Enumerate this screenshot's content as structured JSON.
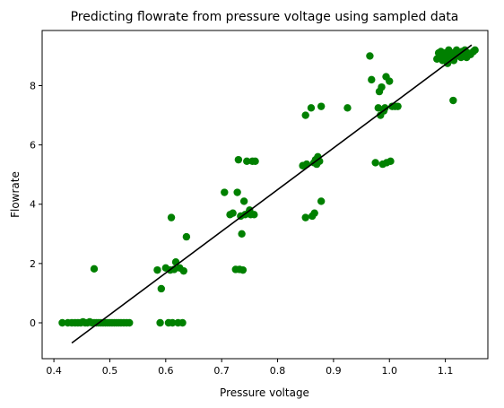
{
  "chart_data": {
    "type": "scatter",
    "title": "Predicting flowrate from pressure voltage using sampled data",
    "xlabel": "Pressure voltage",
    "ylabel": "Flowrate",
    "xlim": [
      0.379,
      1.176
    ],
    "ylim": [
      -1.21,
      9.86
    ],
    "xticks": [
      0.4,
      0.5,
      0.6,
      0.7,
      0.8,
      0.9,
      1.0,
      1.1
    ],
    "xtick_labels": [
      "0.4",
      "0.5",
      "0.6",
      "0.7",
      "0.8",
      "0.9",
      "1.0",
      "1.1"
    ],
    "yticks": [
      0,
      2,
      4,
      6,
      8
    ],
    "ytick_labels": [
      "0",
      "2",
      "4",
      "6",
      "8"
    ],
    "grid": false,
    "legend": "none",
    "point_color": "#008000",
    "line_color": "#000000",
    "points": [
      [
        0.415,
        0.0
      ],
      [
        0.425,
        0.0
      ],
      [
        0.432,
        0.0
      ],
      [
        0.438,
        0.0
      ],
      [
        0.443,
        0.0
      ],
      [
        0.448,
        0.0
      ],
      [
        0.452,
        0.03
      ],
      [
        0.456,
        0.0
      ],
      [
        0.46,
        0.0
      ],
      [
        0.464,
        0.03
      ],
      [
        0.468,
        0.0
      ],
      [
        0.472,
        0.0
      ],
      [
        0.476,
        0.0
      ],
      [
        0.48,
        0.0
      ],
      [
        0.484,
        0.0
      ],
      [
        0.488,
        0.0
      ],
      [
        0.492,
        0.0
      ],
      [
        0.496,
        0.0
      ],
      [
        0.5,
        0.0
      ],
      [
        0.504,
        0.0
      ],
      [
        0.508,
        0.0
      ],
      [
        0.512,
        0.0
      ],
      [
        0.516,
        0.0
      ],
      [
        0.52,
        0.0
      ],
      [
        0.525,
        0.0
      ],
      [
        0.53,
        0.0
      ],
      [
        0.535,
        0.0
      ],
      [
        0.472,
        1.82
      ],
      [
        0.585,
        1.78
      ],
      [
        0.59,
        0.0
      ],
      [
        0.592,
        1.15
      ],
      [
        0.6,
        1.85
      ],
      [
        0.605,
        0.0
      ],
      [
        0.608,
        1.78
      ],
      [
        0.61,
        3.55
      ],
      [
        0.612,
        0.0
      ],
      [
        0.615,
        1.8
      ],
      [
        0.618,
        2.05
      ],
      [
        0.622,
        0.0
      ],
      [
        0.625,
        1.85
      ],
      [
        0.63,
        0.0
      ],
      [
        0.632,
        1.75
      ],
      [
        0.637,
        2.9
      ],
      [
        0.705,
        4.4
      ],
      [
        0.715,
        3.65
      ],
      [
        0.72,
        3.7
      ],
      [
        0.725,
        1.8
      ],
      [
        0.728,
        4.4
      ],
      [
        0.73,
        5.5
      ],
      [
        0.732,
        1.8
      ],
      [
        0.734,
        3.6
      ],
      [
        0.736,
        3.0
      ],
      [
        0.738,
        1.78
      ],
      [
        0.74,
        4.1
      ],
      [
        0.742,
        3.65
      ],
      [
        0.745,
        5.45
      ],
      [
        0.748,
        3.7
      ],
      [
        0.75,
        3.8
      ],
      [
        0.752,
        3.65
      ],
      [
        0.755,
        5.45
      ],
      [
        0.758,
        3.65
      ],
      [
        0.76,
        5.45
      ],
      [
        0.845,
        5.3
      ],
      [
        0.85,
        3.55
      ],
      [
        0.85,
        7.0
      ],
      [
        0.852,
        5.35
      ],
      [
        0.86,
        7.25
      ],
      [
        0.862,
        3.6
      ],
      [
        0.865,
        5.4
      ],
      [
        0.866,
        3.7
      ],
      [
        0.868,
        5.5
      ],
      [
        0.87,
        5.35
      ],
      [
        0.872,
        5.6
      ],
      [
        0.875,
        5.45
      ],
      [
        0.878,
        4.1
      ],
      [
        0.878,
        7.3
      ],
      [
        0.925,
        7.25
      ],
      [
        0.965,
        9.0
      ],
      [
        0.968,
        8.2
      ],
      [
        0.975,
        5.4
      ],
      [
        0.98,
        7.25
      ],
      [
        0.982,
        7.8
      ],
      [
        0.984,
        7.0
      ],
      [
        0.986,
        7.95
      ],
      [
        0.988,
        5.35
      ],
      [
        0.99,
        7.15
      ],
      [
        0.992,
        7.25
      ],
      [
        0.994,
        8.3
      ],
      [
        0.995,
        5.4
      ],
      [
        1.0,
        8.15
      ],
      [
        1.002,
        5.45
      ],
      [
        1.005,
        7.3
      ],
      [
        1.01,
        7.3
      ],
      [
        1.015,
        7.3
      ],
      [
        1.085,
        8.9
      ],
      [
        1.088,
        9.1
      ],
      [
        1.09,
        8.95
      ],
      [
        1.092,
        9.15
      ],
      [
        1.095,
        8.85
      ],
      [
        1.097,
        9.05
      ],
      [
        1.1,
        9.1
      ],
      [
        1.102,
        8.9
      ],
      [
        1.104,
        8.75
      ],
      [
        1.106,
        9.2
      ],
      [
        1.108,
        9.0
      ],
      [
        1.11,
        8.95
      ],
      [
        1.112,
        9.1
      ],
      [
        1.114,
        7.5
      ],
      [
        1.115,
        8.85
      ],
      [
        1.117,
        9.05
      ],
      [
        1.12,
        9.2
      ],
      [
        1.122,
        9.0
      ],
      [
        1.125,
        9.1
      ],
      [
        1.128,
        8.95
      ],
      [
        1.13,
        9.15
      ],
      [
        1.132,
        9.05
      ],
      [
        1.135,
        9.2
      ],
      [
        1.138,
        8.95
      ],
      [
        1.14,
        9.1
      ],
      [
        1.145,
        9.05
      ],
      [
        1.15,
        9.15
      ],
      [
        1.153,
        9.2
      ]
    ],
    "fit_line": [
      [
        0.432,
        -0.68
      ],
      [
        1.147,
        9.37
      ]
    ]
  }
}
